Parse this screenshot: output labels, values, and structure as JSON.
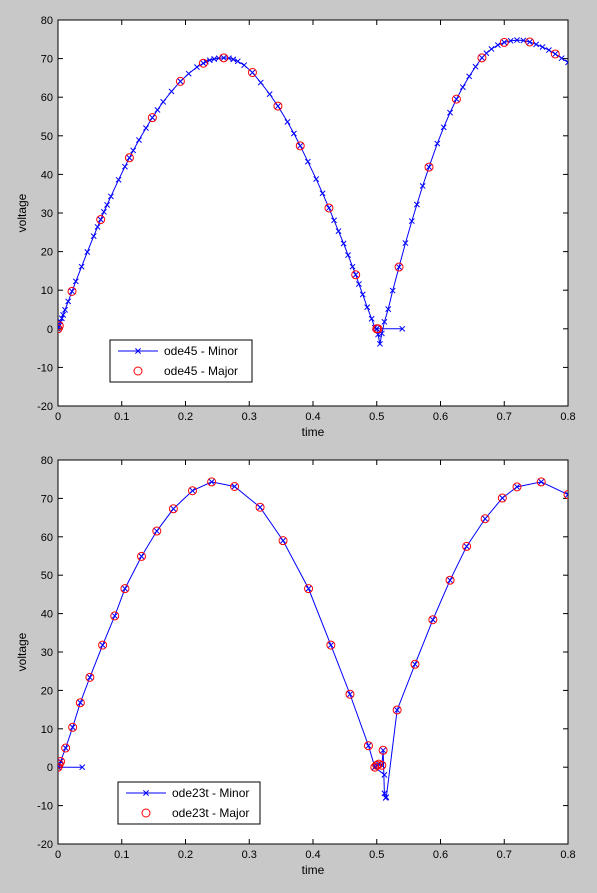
{
  "chart_data": [
    {
      "type": "line",
      "xlabel": "time",
      "ylabel": "voltage",
      "xlim": [
        0,
        0.8
      ],
      "ylim": [
        -20,
        80
      ],
      "xticks": [
        "0",
        "0.1",
        "0.2",
        "0.3",
        "0.4",
        "0.5",
        "0.6",
        "0.7",
        "0.8"
      ],
      "yticks": [
        "-20",
        "-10",
        "0",
        "10",
        "20",
        "30",
        "40",
        "50",
        "60",
        "70",
        "80"
      ],
      "grid": false,
      "legend_position": "bottom-left",
      "series": [
        {
          "name": "ode45 - Minor",
          "color": "#0000ff",
          "marker": "x",
          "points": [
            [
              0,
              0
            ],
            [
              0.002,
              0.8
            ],
            [
              0.004,
              1.8
            ],
            [
              0.006,
              2.7
            ],
            [
              0.008,
              3.6
            ],
            [
              0.011,
              4.9
            ],
            [
              0.016,
              7.1
            ],
            [
              0.022,
              9.7
            ],
            [
              0.028,
              12.3
            ],
            [
              0.037,
              16.1
            ],
            [
              0.046,
              19.9
            ],
            [
              0.056,
              24.0
            ],
            [
              0.062,
              26.4
            ],
            [
              0.067,
              28.3
            ],
            [
              0.072,
              30.3
            ],
            [
              0.077,
              32.1
            ],
            [
              0.083,
              34.3
            ],
            [
              0.095,
              38.6
            ],
            [
              0.105,
              42.0
            ],
            [
              0.112,
              44.3
            ],
            [
              0.118,
              46.2
            ],
            [
              0.127,
              48.9
            ],
            [
              0.138,
              52.0
            ],
            [
              0.148,
              54.7
            ],
            [
              0.156,
              56.7
            ],
            [
              0.165,
              58.8
            ],
            [
              0.178,
              61.5
            ],
            [
              0.192,
              64.1
            ],
            [
              0.205,
              66.1
            ],
            [
              0.218,
              67.8
            ],
            [
              0.228,
              68.8
            ],
            [
              0.232,
              69.2
            ],
            [
              0.238,
              69.6
            ],
            [
              0.245,
              69.9
            ],
            [
              0.252,
              70.1
            ],
            [
              0.26,
              70.2
            ],
            [
              0.268,
              70.1
            ],
            [
              0.275,
              69.8
            ],
            [
              0.282,
              69.3
            ],
            [
              0.292,
              68.3
            ],
            [
              0.305,
              66.4
            ],
            [
              0.318,
              63.8
            ],
            [
              0.332,
              60.8
            ],
            [
              0.345,
              57.7
            ],
            [
              0.36,
              53.6
            ],
            [
              0.37,
              50.6
            ],
            [
              0.38,
              47.4
            ],
            [
              0.392,
              43.3
            ],
            [
              0.405,
              38.8
            ],
            [
              0.415,
              35.1
            ],
            [
              0.425,
              31.3
            ],
            [
              0.433,
              28.1
            ],
            [
              0.44,
              25.3
            ],
            [
              0.448,
              22.1
            ],
            [
              0.455,
              19.1
            ],
            [
              0.462,
              16.1
            ],
            [
              0.467,
              14.0
            ],
            [
              0.472,
              11.6
            ],
            [
              0.478,
              8.9
            ],
            [
              0.485,
              5.6
            ],
            [
              0.492,
              2.6
            ],
            [
              0.497,
              0.3
            ],
            [
              0.5,
              0
            ],
            [
              0.502,
              -1.5
            ],
            [
              0.505,
              -3.9
            ],
            [
              0.508,
              -1.2
            ],
            [
              0.512,
              1.8
            ],
            [
              0.518,
              5.1
            ],
            [
              0.525,
              9.9
            ],
            [
              0.535,
              16.0
            ],
            [
              0.545,
              22.2
            ],
            [
              0.555,
              27.9
            ],
            [
              0.563,
              32.2
            ],
            [
              0.572,
              37.0
            ],
            [
              0.582,
              41.9
            ],
            [
              0.595,
              48.0
            ],
            [
              0.605,
              52.2
            ],
            [
              0.615,
              56.0
            ],
            [
              0.625,
              59.5
            ],
            [
              0.635,
              62.6
            ],
            [
              0.645,
              65.4
            ],
            [
              0.655,
              67.9
            ],
            [
              0.665,
              70.2
            ],
            [
              0.672,
              71.4
            ],
            [
              0.68,
              72.5
            ],
            [
              0.69,
              73.5
            ],
            [
              0.7,
              74.2
            ],
            [
              0.71,
              74.6
            ],
            [
              0.72,
              74.8
            ],
            [
              0.73,
              74.7
            ],
            [
              0.74,
              74.3
            ],
            [
              0.75,
              73.7
            ],
            [
              0.76,
              73.0
            ],
            [
              0.77,
              72.2
            ],
            [
              0.78,
              71.2
            ],
            [
              0.79,
              70.1
            ],
            [
              0.8,
              69.0
            ]
          ],
          "extra_segments": [
            [
              [
                0.5,
                0
              ],
              [
                0.54,
                0
              ]
            ]
          ]
        },
        {
          "name": "ode45 - Major",
          "color": "#ff0000",
          "marker": "o",
          "points": [
            [
              0,
              0
            ],
            [
              0.002,
              0.8
            ],
            [
              0.022,
              9.7
            ],
            [
              0.067,
              28.3
            ],
            [
              0.112,
              44.3
            ],
            [
              0.148,
              54.7
            ],
            [
              0.192,
              64.1
            ],
            [
              0.228,
              68.8
            ],
            [
              0.26,
              70.2
            ],
            [
              0.305,
              66.4
            ],
            [
              0.345,
              57.7
            ],
            [
              0.38,
              47.4
            ],
            [
              0.425,
              31.3
            ],
            [
              0.467,
              14.0
            ],
            [
              0.5,
              0
            ],
            [
              0.502,
              0
            ],
            [
              0.535,
              16.0
            ],
            [
              0.582,
              41.9
            ],
            [
              0.625,
              59.5
            ],
            [
              0.665,
              70.2
            ],
            [
              0.7,
              74.2
            ],
            [
              0.74,
              74.3
            ],
            [
              0.78,
              71.2
            ]
          ]
        }
      ]
    },
    {
      "type": "line",
      "xlabel": "time",
      "ylabel": "voltage",
      "xlim": [
        0,
        0.8
      ],
      "ylim": [
        -20,
        80
      ],
      "xticks": [
        "0",
        "0.1",
        "0.2",
        "0.3",
        "0.4",
        "0.5",
        "0.6",
        "0.7",
        "0.8"
      ],
      "yticks": [
        "-20",
        "-10",
        "0",
        "10",
        "20",
        "30",
        "40",
        "50",
        "60",
        "70",
        "80"
      ],
      "grid": false,
      "legend_position": "bottom-left",
      "series": [
        {
          "name": "ode23t - Minor",
          "color": "#0000ff",
          "marker": "x",
          "points": [
            [
              0,
              0
            ],
            [
              0.002,
              0.8
            ],
            [
              0.004,
              1.5
            ],
            [
              0.012,
              5.0
            ],
            [
              0.023,
              10.4
            ],
            [
              0.035,
              16.8
            ],
            [
              0.05,
              23.4
            ],
            [
              0.07,
              31.8
            ],
            [
              0.089,
              39.4
            ],
            [
              0.105,
              46.5
            ],
            [
              0.131,
              54.9
            ],
            [
              0.155,
              61.5
            ],
            [
              0.181,
              67.3
            ],
            [
              0.211,
              72.0
            ],
            [
              0.241,
              74.3
            ],
            [
              0.277,
              73.1
            ],
            [
              0.317,
              67.7
            ],
            [
              0.353,
              59.0
            ],
            [
              0.393,
              46.5
            ],
            [
              0.428,
              31.8
            ],
            [
              0.458,
              19.0
            ],
            [
              0.487,
              5.6
            ],
            [
              0.497,
              0
            ],
            [
              0.5,
              0.5
            ],
            [
              0.503,
              0.8
            ],
            [
              0.508,
              0.5
            ],
            [
              0.51,
              4.4
            ],
            [
              0.512,
              -6.8
            ],
            [
              0.514,
              -8.0
            ],
            [
              0.515,
              -7.8
            ],
            [
              0.532,
              14.9
            ],
            [
              0.56,
              26.8
            ],
            [
              0.588,
              38.4
            ],
            [
              0.615,
              48.7
            ],
            [
              0.641,
              57.5
            ],
            [
              0.67,
              64.7
            ],
            [
              0.697,
              70.1
            ],
            [
              0.72,
              73.0
            ],
            [
              0.758,
              74.3
            ],
            [
              0.8,
              71.0
            ]
          ],
          "extra_segments": [
            [
              [
                0,
                0
              ],
              [
                0.038,
                0
              ]
            ],
            [
              [
                0.497,
                0
              ],
              [
                0.512,
                -2.0
              ]
            ]
          ]
        },
        {
          "name": "ode23t - Major",
          "color": "#ff0000",
          "marker": "o",
          "points": [
            [
              0,
              0
            ],
            [
              0.002,
              0.8
            ],
            [
              0.004,
              1.5
            ],
            [
              0.012,
              5.0
            ],
            [
              0.023,
              10.4
            ],
            [
              0.035,
              16.8
            ],
            [
              0.05,
              23.4
            ],
            [
              0.07,
              31.8
            ],
            [
              0.089,
              39.4
            ],
            [
              0.105,
              46.5
            ],
            [
              0.131,
              54.9
            ],
            [
              0.155,
              61.5
            ],
            [
              0.181,
              67.3
            ],
            [
              0.211,
              72.0
            ],
            [
              0.241,
              74.3
            ],
            [
              0.277,
              73.1
            ],
            [
              0.317,
              67.7
            ],
            [
              0.353,
              59.0
            ],
            [
              0.393,
              46.5
            ],
            [
              0.428,
              31.8
            ],
            [
              0.458,
              19.0
            ],
            [
              0.487,
              5.6
            ],
            [
              0.497,
              0
            ],
            [
              0.5,
              0.5
            ],
            [
              0.503,
              0.8
            ],
            [
              0.508,
              0.5
            ],
            [
              0.51,
              4.4
            ],
            [
              0.532,
              14.9
            ],
            [
              0.56,
              26.8
            ],
            [
              0.588,
              38.4
            ],
            [
              0.615,
              48.7
            ],
            [
              0.641,
              57.5
            ],
            [
              0.67,
              64.7
            ],
            [
              0.697,
              70.1
            ],
            [
              0.72,
              73.0
            ],
            [
              0.758,
              74.3
            ],
            [
              0.8,
              71.0
            ]
          ]
        }
      ]
    }
  ]
}
